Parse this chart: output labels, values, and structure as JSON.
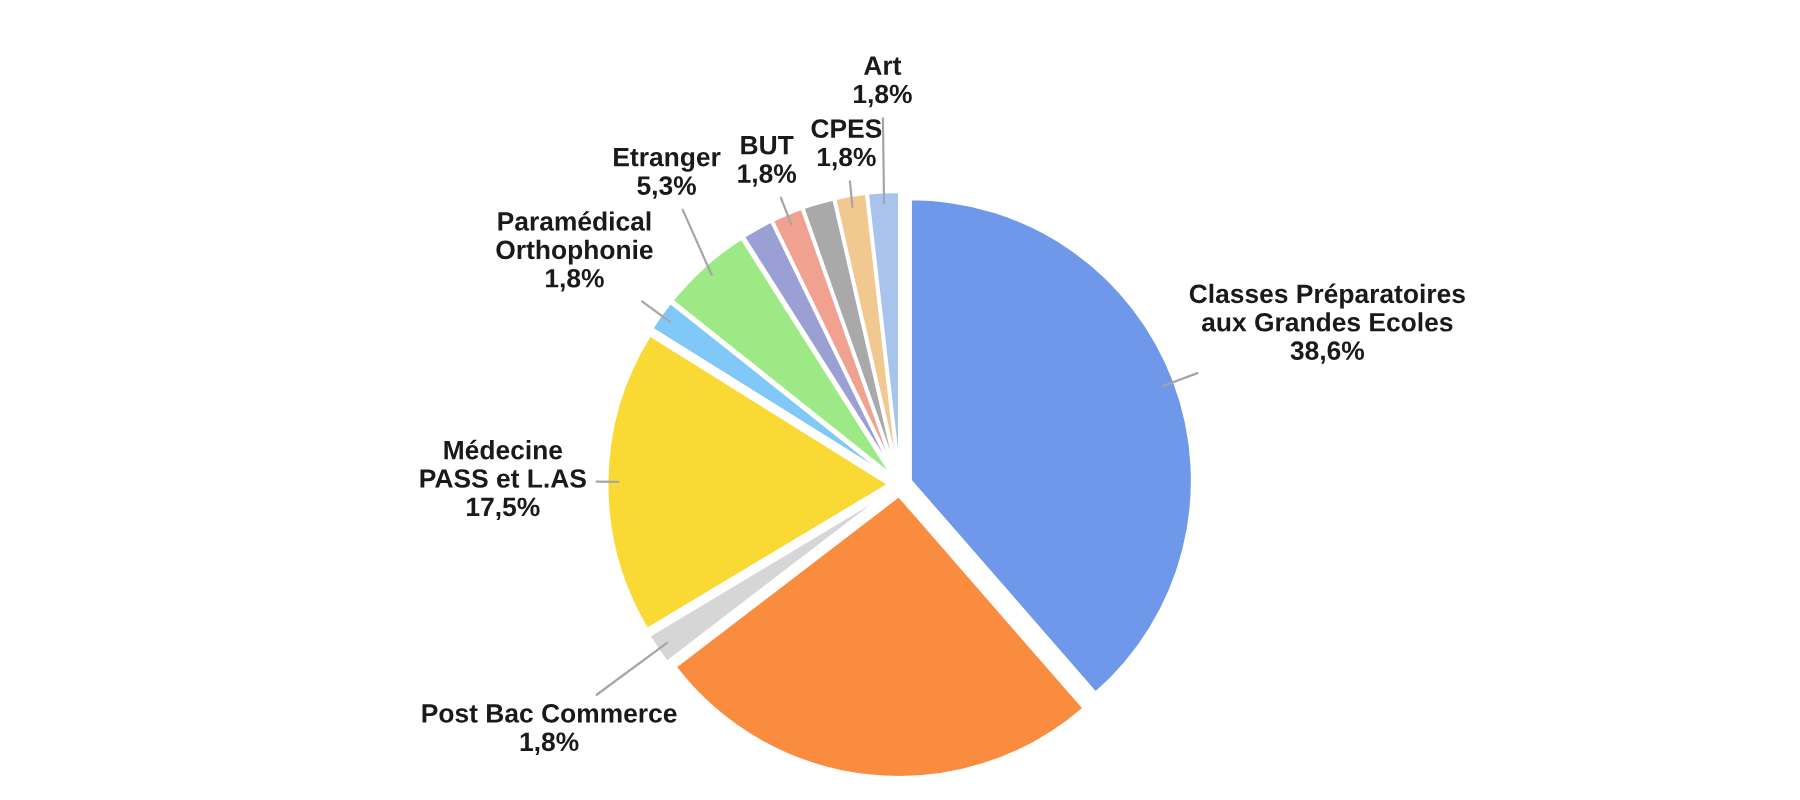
{
  "chart_data": {
    "type": "pie",
    "categories": [
      "Classes Préparatoires\naux Grandes Ecoles",
      null,
      "Post Bac Commerce",
      "Médecine\nPASS et L.AS",
      "Paramédical\nOrthophonie",
      "Etranger",
      null,
      "BUT",
      null,
      "CPES",
      "Art"
    ],
    "values": [
      38.6,
      26.0,
      1.8,
      17.5,
      1.8,
      5.3,
      1.8,
      1.8,
      1.8,
      1.8,
      1.8
    ],
    "colors": [
      "#6f98ea",
      "#fa8c3f",
      "#d6d6d6",
      "#fbd935",
      "#80c8f8",
      "#9ce985",
      "#9a9fd4",
      "#f0a190",
      "#a9a9a9",
      "#f0c890",
      "#a8c4ec"
    ],
    "value_labels": [
      "38,6%",
      null,
      "1,8%",
      "17,5%",
      "1,8%",
      "5,3%",
      null,
      "1,8%",
      null,
      "1,8%",
      "1,8%"
    ]
  }
}
